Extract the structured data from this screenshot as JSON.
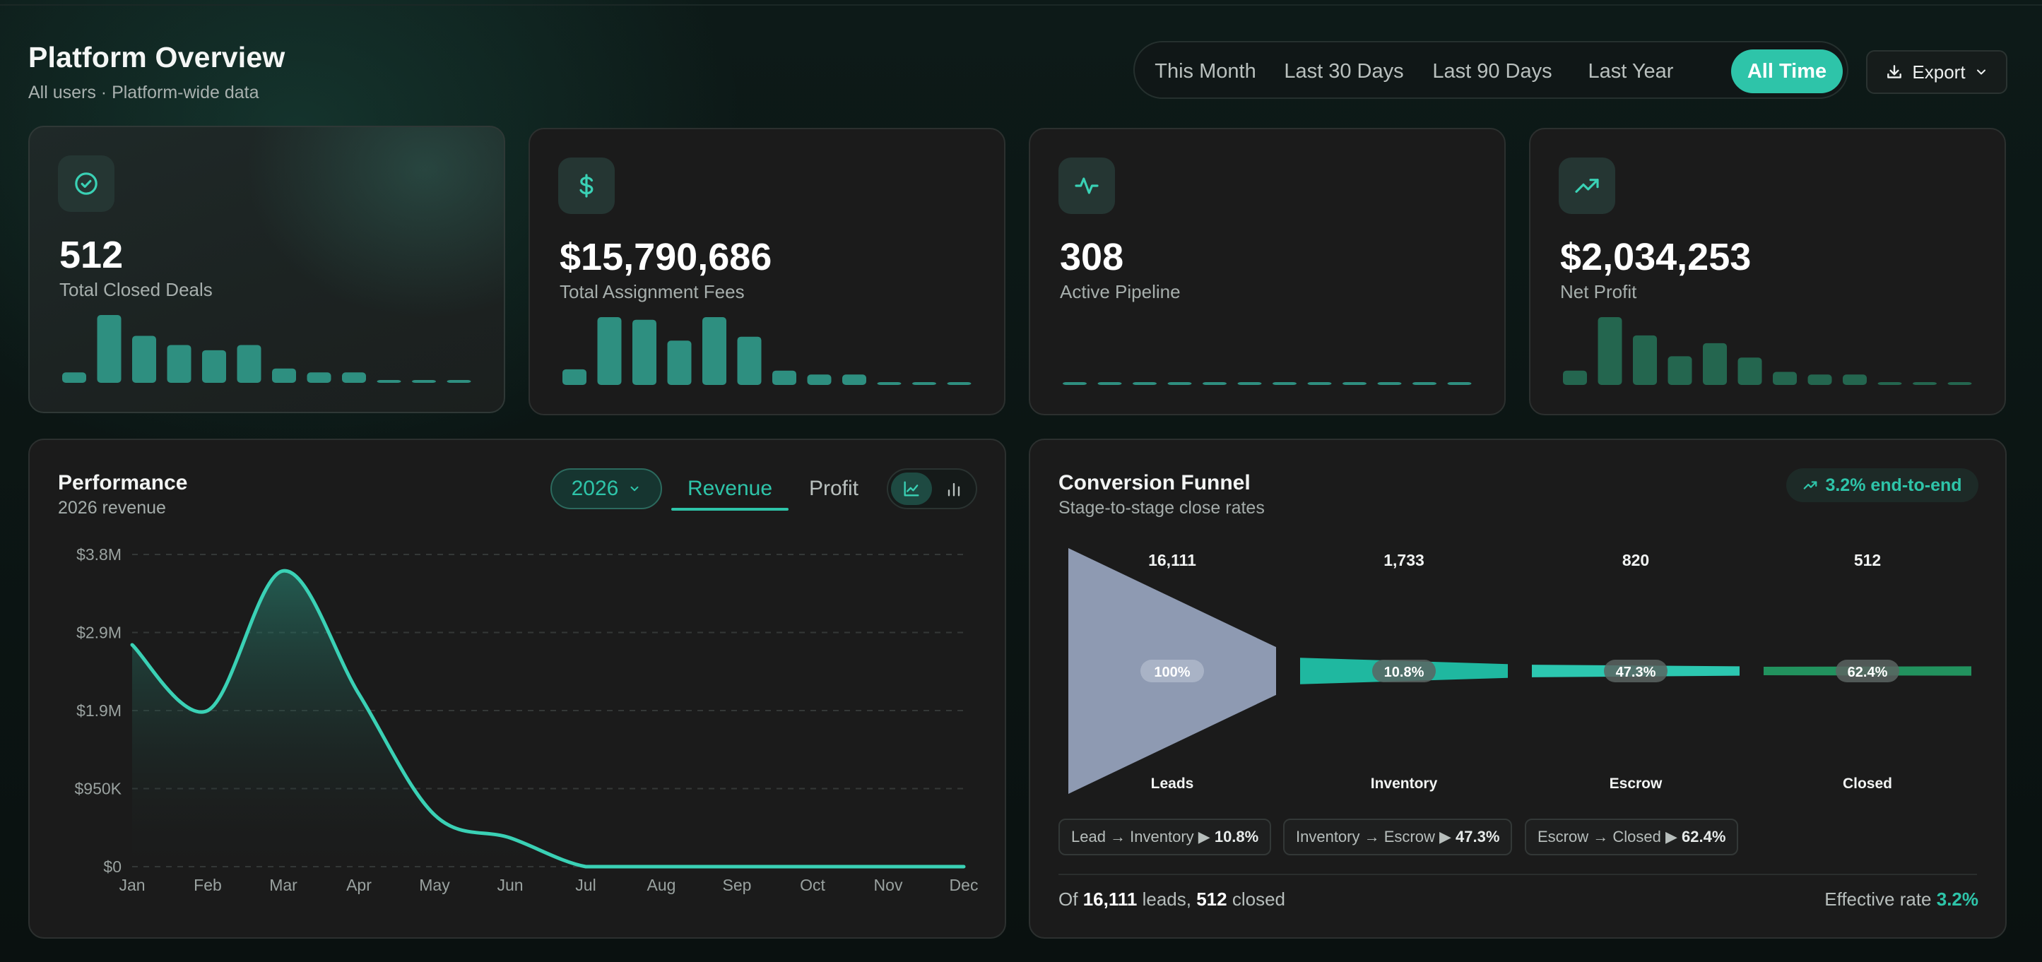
{
  "header": {
    "title": "Platform Overview",
    "subtitle": "All users · Platform-wide data"
  },
  "range_tabs": [
    {
      "label": "This Month",
      "active": false
    },
    {
      "label": "Last 30 Days",
      "active": false
    },
    {
      "label": "Last 90 Days",
      "active": false
    },
    {
      "label": "Last Year",
      "active": false
    },
    {
      "label": "All Time",
      "active": true
    }
  ],
  "export": {
    "label": "Export",
    "icon": "download-icon"
  },
  "kpis": [
    {
      "value": "512",
      "label": "Total Closed Deals",
      "icon": "check-circle-icon",
      "spark_color": "#2e8f80",
      "spark": [
        8,
        52,
        36,
        29,
        25,
        29,
        11,
        8,
        8,
        0,
        0,
        0
      ]
    },
    {
      "value": "$15,790,686",
      "label": "Total Assignment Fees",
      "icon": "dollar-icon",
      "spark_color": "#2e8f80",
      "spark": [
        12,
        52,
        50,
        34,
        52,
        37,
        11,
        8,
        8,
        0,
        0,
        0
      ]
    },
    {
      "value": "308",
      "label": "Active Pipeline",
      "icon": "activity-icon",
      "spark_color": "#2e8f80",
      "spark": [
        0,
        0,
        0,
        0,
        0,
        0,
        0,
        0,
        0,
        0,
        0,
        0
      ]
    },
    {
      "value": "$2,034,253",
      "label": "Net Profit",
      "icon": "trending-up-icon",
      "spark_color": "#24664f",
      "spark": [
        11,
        52,
        38,
        22,
        32,
        21,
        10,
        8,
        8,
        0,
        0,
        0
      ]
    }
  ],
  "performance": {
    "title": "Performance",
    "subtitle": "2026 revenue",
    "year": "2026",
    "tabs": [
      {
        "label": "Revenue",
        "active": true
      },
      {
        "label": "Profit",
        "active": false
      }
    ],
    "view_modes": [
      {
        "icon": "line-chart-icon",
        "active": true
      },
      {
        "icon": "bar-chart-icon",
        "active": false
      }
    ],
    "chart_data": {
      "type": "area",
      "categories": [
        "Jan",
        "Feb",
        "Mar",
        "Apr",
        "May",
        "Jun",
        "Jul",
        "Aug",
        "Sep",
        "Oct",
        "Nov",
        "Dec"
      ],
      "series": [
        {
          "values": [
            2700000,
            1900000,
            3600000,
            2100000,
            630000,
            350000,
            0,
            0,
            0,
            0,
            0,
            0
          ]
        }
      ],
      "yticks": [
        "$0",
        "$950K",
        "$1.9M",
        "$2.9M",
        "$3.8M"
      ],
      "ytick_values": [
        0,
        950000,
        1900000,
        2850000,
        3800000
      ],
      "ylim": [
        0,
        3800000
      ],
      "grid": true,
      "color": "#3ad1b5"
    }
  },
  "funnel": {
    "title": "Conversion Funnel",
    "subtitle": "Stage-to-stage close rates",
    "badge": "3.2% end-to-end",
    "stages": [
      {
        "name": "Leads",
        "count": "16,111",
        "rate": "100%",
        "share": 1.0,
        "color": "#8e9ab2"
      },
      {
        "name": "Inventory",
        "count": "1,733",
        "rate": "10.8%",
        "share": 0.108,
        "color": "#1fb8a0"
      },
      {
        "name": "Escrow",
        "count": "820",
        "rate": "47.3%",
        "share": 0.051,
        "color": "#2cc7b0"
      },
      {
        "name": "Closed",
        "count": "512",
        "rate": "62.4%",
        "share": 0.032,
        "color": "#22925e"
      }
    ],
    "transitions": [
      {
        "label": "Lead → Inventory ▶",
        "value": "10.8%"
      },
      {
        "label": "Inventory → Escrow ▶",
        "value": "47.3%"
      },
      {
        "label": "Escrow → Closed ▶",
        "value": "62.4%"
      }
    ],
    "summary": {
      "prefix": "Of",
      "leads": "16,111",
      "leads_word": "leads,",
      "closed": "512",
      "closed_word": "closed",
      "rate_label": "Effective rate",
      "rate": "3.2%"
    }
  }
}
